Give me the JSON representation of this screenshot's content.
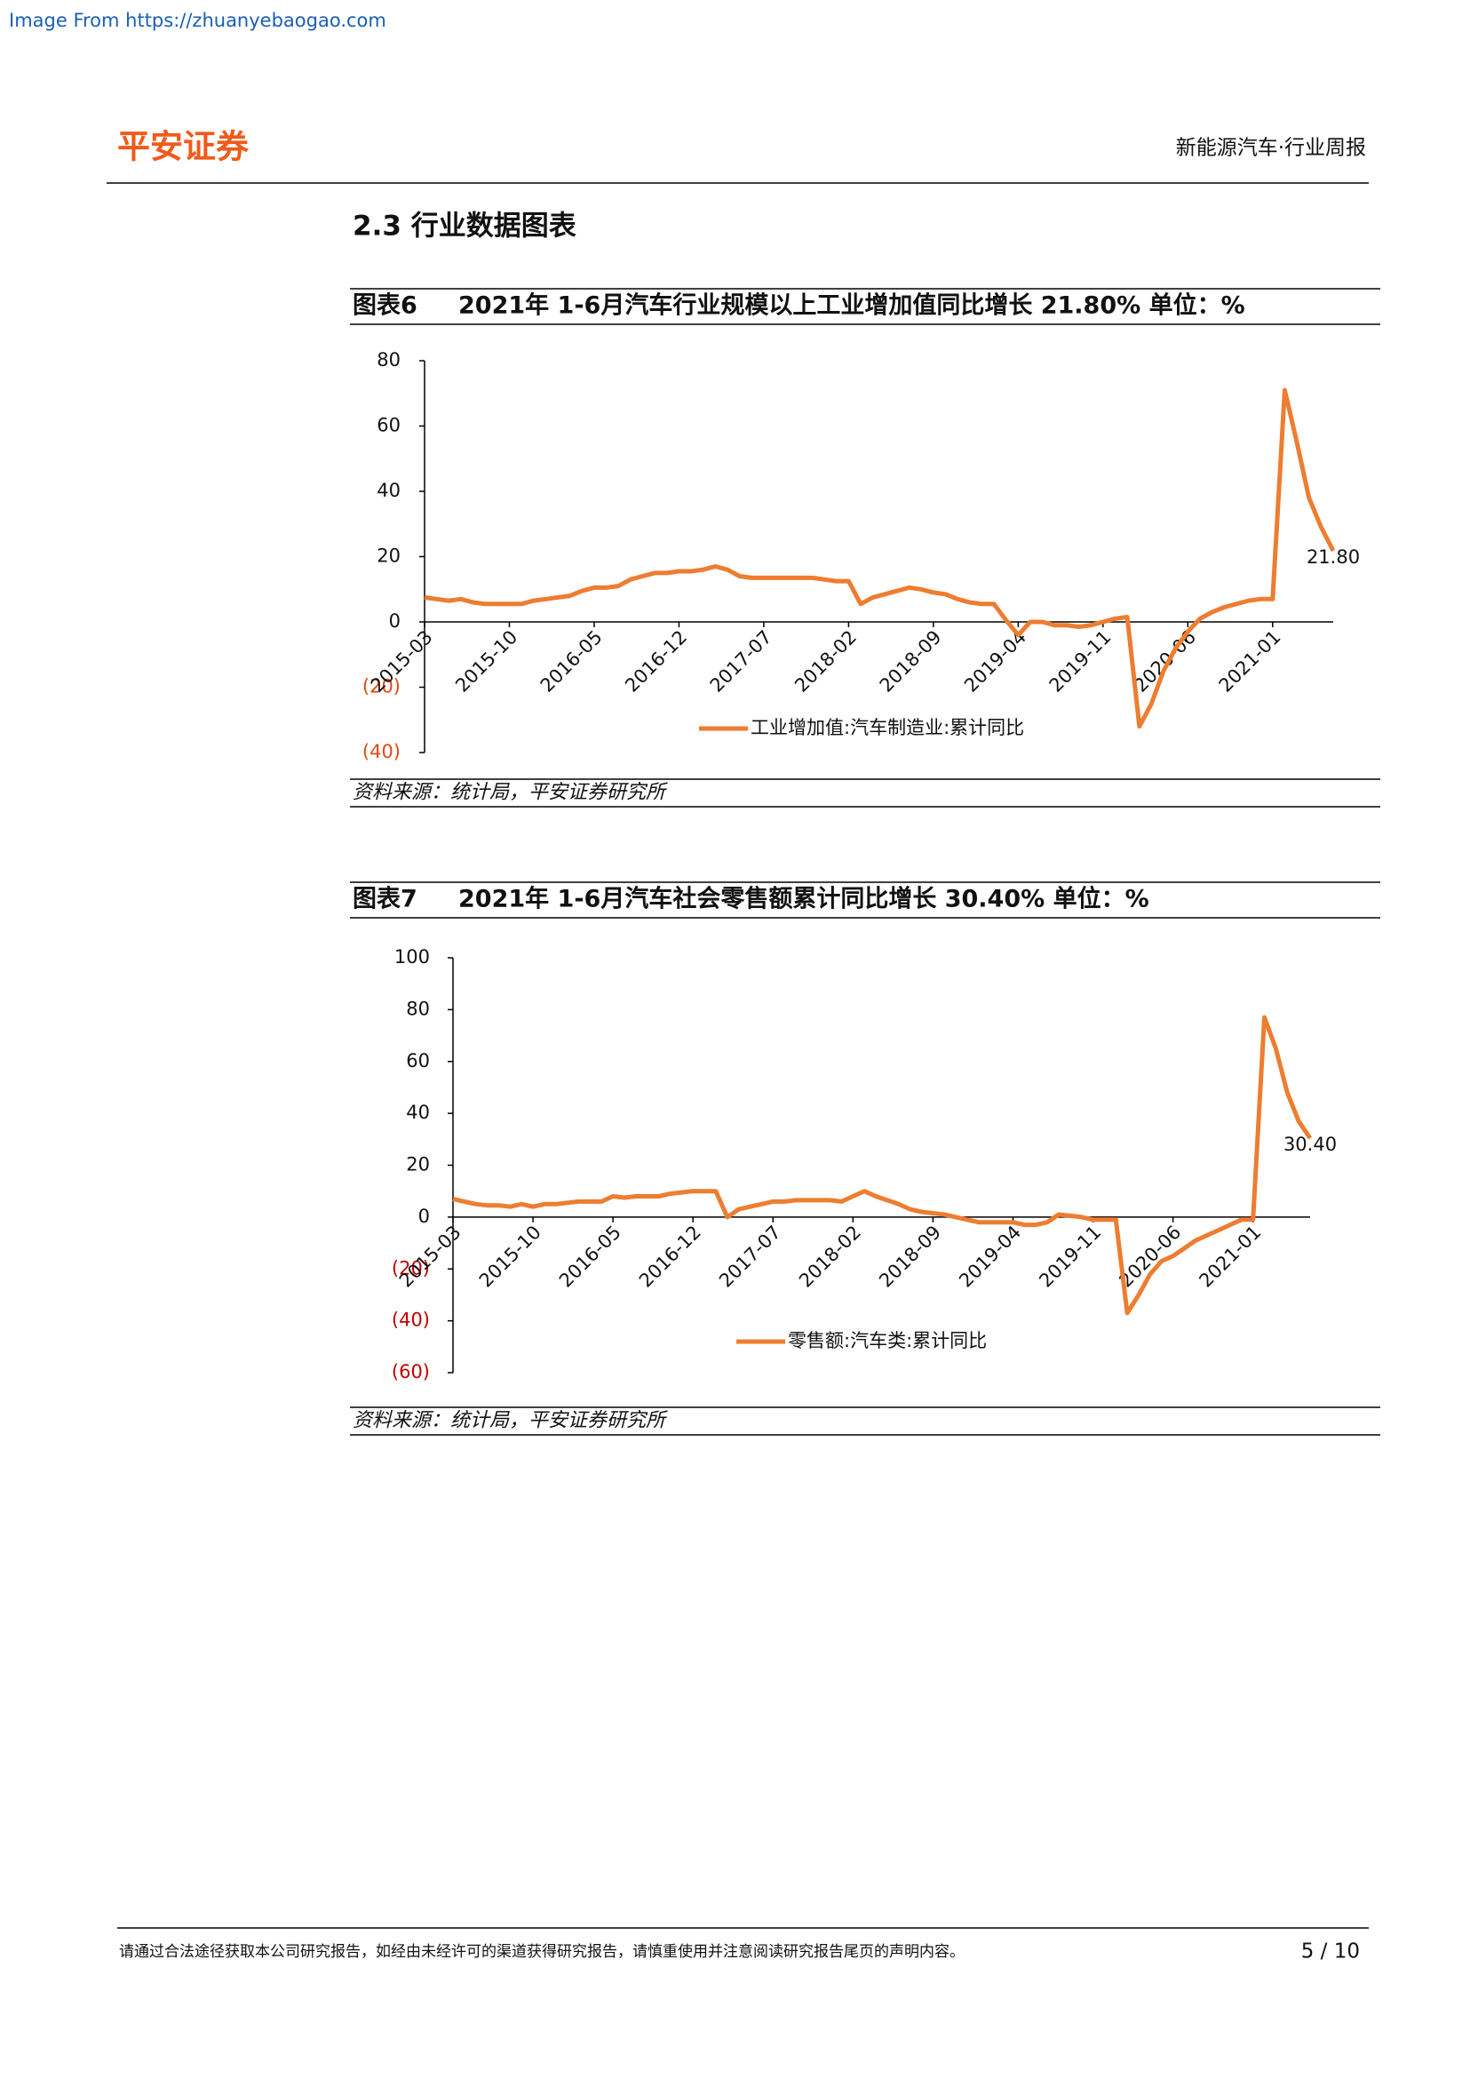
{
  "source_note": "Image From https://zhuanyebaogao.com",
  "header": {
    "logo": "平安证券",
    "title": "新能源汽车·行业周报"
  },
  "section_title": "2.3 行业数据图表",
  "chart_data": [
    {
      "type": "line",
      "figure_label": "图表6",
      "title": "2021年 1-6月汽车行业规模以上工业增加值同比增长 21.80%  单位：%",
      "source": "资料来源：统计局，平安证券研究所",
      "categories": [
        "2015-03",
        null,
        null,
        null,
        null,
        null,
        null,
        "2015-10",
        null,
        null,
        null,
        null,
        null,
        null,
        "2016-05",
        null,
        null,
        null,
        null,
        null,
        null,
        "2016-12",
        null,
        null,
        null,
        null,
        null,
        null,
        "2017-07",
        null,
        null,
        null,
        null,
        null,
        null,
        "2018-02",
        null,
        null,
        null,
        null,
        null,
        null,
        "2018-09",
        null,
        null,
        null,
        null,
        null,
        null,
        "2019-04",
        null,
        null,
        null,
        null,
        null,
        null,
        "2019-11",
        null,
        null,
        null,
        null,
        null,
        null,
        "2020-06",
        null,
        null,
        null,
        null,
        null,
        null,
        "2021-01",
        null,
        null,
        null,
        null,
        null
      ],
      "series": [
        {
          "name": "工业增加值:汽车制造业:累计同比",
          "color": "#ED7D31",
          "values": [
            7.5,
            7,
            6.5,
            7,
            6,
            5.5,
            5.5,
            5.5,
            5.5,
            6.5,
            7,
            7.5,
            8,
            9.5,
            10.5,
            10.5,
            11,
            13,
            14,
            15,
            15,
            15.5,
            15.5,
            16,
            17,
            16,
            14,
            13.5,
            13.5,
            13.5,
            13.5,
            13.5,
            13.5,
            13,
            12.5,
            12.5,
            5.5,
            7.5,
            8.5,
            9.5,
            10.5,
            10,
            9,
            8.5,
            7,
            6,
            5.5,
            5.5,
            0.5,
            -4,
            0,
            0,
            -1,
            -1,
            -1.5,
            -1,
            0,
            1,
            1.5,
            -32,
            -25,
            -15,
            -8,
            -3,
            1,
            3,
            4.5,
            5.5,
            6.5,
            7,
            7,
            71,
            55,
            38,
            29,
            21.8
          ],
          "value_labels": [
            null,
            null,
            null,
            null,
            null,
            null,
            null,
            null,
            null,
            null,
            null,
            null,
            null,
            null,
            null,
            null,
            null,
            null,
            null,
            null,
            null,
            null,
            null,
            null,
            null,
            null,
            null,
            null,
            null,
            null,
            null,
            null,
            null,
            null,
            null,
            null,
            null,
            null,
            null,
            null,
            null,
            null,
            null,
            null,
            null,
            null,
            null,
            null,
            null,
            null,
            null,
            null,
            null,
            null,
            null,
            null,
            null,
            null,
            null,
            null,
            null,
            null,
            null,
            null,
            null,
            null,
            null,
            null,
            null,
            null,
            null,
            null,
            null,
            null,
            null,
            "21.80"
          ]
        }
      ],
      "ylim": [
        -40,
        80
      ],
      "yticks": [
        {
          "value": -40,
          "label": "(40)"
        },
        {
          "value": -20,
          "label": "(20)"
        },
        0,
        20,
        40,
        60,
        80
      ],
      "negative_tick_color": "#E04A12"
    },
    {
      "type": "line",
      "figure_label": "图表7",
      "title": "2021年 1-6月汽车社会零售额累计同比增长 30.40%  单位：%",
      "source": "资料来源：统计局，平安证券研究所",
      "categories": [
        "2015-03",
        null,
        null,
        null,
        null,
        null,
        null,
        "2015-10",
        null,
        null,
        null,
        null,
        null,
        null,
        "2016-05",
        null,
        null,
        null,
        null,
        null,
        null,
        "2016-12",
        null,
        null,
        null,
        null,
        null,
        null,
        "2017-07",
        null,
        null,
        null,
        null,
        null,
        null,
        "2018-02",
        null,
        null,
        null,
        null,
        null,
        null,
        "2018-09",
        null,
        null,
        null,
        null,
        null,
        null,
        "2019-04",
        null,
        null,
        null,
        null,
        null,
        null,
        "2019-11",
        null,
        null,
        null,
        null,
        null,
        null,
        "2020-06",
        null,
        null,
        null,
        null,
        null,
        null,
        "2021-01",
        null,
        null,
        null,
        null,
        null
      ],
      "series": [
        {
          "name": "零售额:汽车类:累计同比",
          "color": "#ED7D31",
          "values": [
            7,
            6,
            5,
            4.5,
            4.5,
            4,
            5,
            4,
            5,
            5,
            5.5,
            6,
            6,
            6,
            8,
            7.5,
            8,
            8,
            8,
            9,
            9.5,
            10,
            10,
            10,
            0,
            3,
            4,
            5,
            6,
            6,
            6.5,
            6.5,
            6.5,
            6.5,
            6,
            8,
            10,
            8,
            6.5,
            5,
            3,
            2,
            1.5,
            1,
            0,
            -1,
            -2,
            -2,
            -2,
            -2,
            -3,
            -3,
            -2,
            1,
            0.5,
            0,
            -1,
            -1,
            -1,
            -37,
            -30,
            -22,
            -17,
            -15,
            -12,
            -9,
            -7,
            -5,
            -3,
            -1,
            -1,
            77,
            65,
            48,
            37,
            30.4
          ],
          "value_labels": [
            null,
            null,
            null,
            null,
            null,
            null,
            null,
            null,
            null,
            null,
            null,
            null,
            null,
            null,
            null,
            null,
            null,
            null,
            null,
            null,
            null,
            null,
            null,
            null,
            null,
            null,
            null,
            null,
            null,
            null,
            null,
            null,
            null,
            null,
            null,
            null,
            null,
            null,
            null,
            null,
            null,
            null,
            null,
            null,
            null,
            null,
            null,
            null,
            null,
            null,
            null,
            null,
            null,
            null,
            null,
            null,
            null,
            null,
            null,
            null,
            null,
            null,
            null,
            null,
            null,
            null,
            null,
            null,
            null,
            null,
            null,
            null,
            null,
            null,
            null,
            "30.40"
          ]
        }
      ],
      "ylim": [
        -60,
        100
      ],
      "yticks": [
        {
          "value": -60,
          "label": "(60)"
        },
        {
          "value": -40,
          "label": "(40)"
        },
        {
          "value": -20,
          "label": "(20)"
        },
        0,
        20,
        40,
        60,
        80,
        100
      ],
      "negative_tick_color": "#C00000"
    }
  ],
  "footer": {
    "disclaimer": "请通过合法途径获取本公司研究报告，如经由未经许可的渠道获得研究报告，请慎重使用并注意阅读研究报告尾页的声明内容。",
    "page": "5 / 10"
  }
}
